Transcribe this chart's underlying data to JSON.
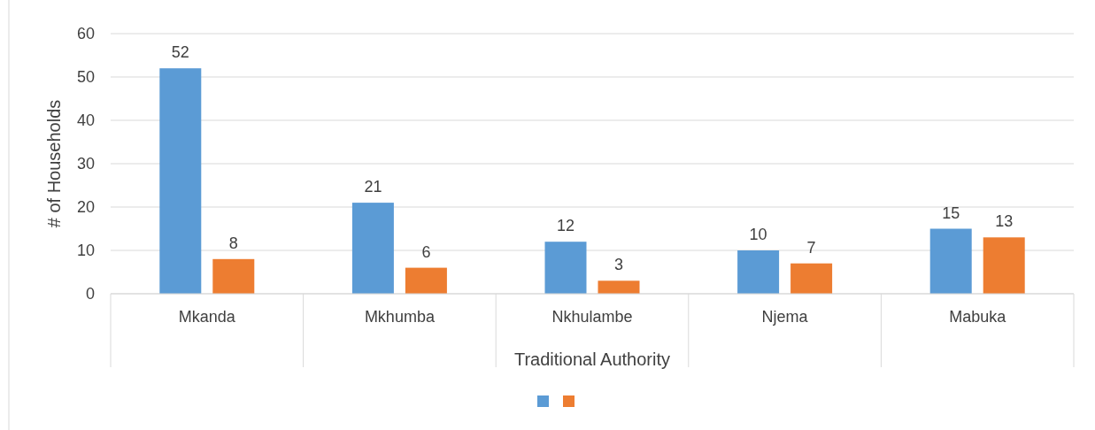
{
  "chart_data": {
    "type": "bar",
    "xlabel": "Traditional Authority",
    "ylabel": "# of Households",
    "categories": [
      "Mkanda",
      "Mkhumba",
      "Nkhulambe",
      "Njema",
      "Mabuka"
    ],
    "series": [
      {
        "color": "#5b9bd5",
        "values": [
          52,
          21,
          12,
          10,
          15
        ]
      },
      {
        "color": "#ed7d31",
        "values": [
          8,
          6,
          3,
          7,
          13
        ]
      }
    ],
    "ylim": [
      0,
      60
    ],
    "yticks": [
      0,
      10,
      20,
      30,
      40,
      50,
      60
    ],
    "grid": "y",
    "data_labels": true
  }
}
